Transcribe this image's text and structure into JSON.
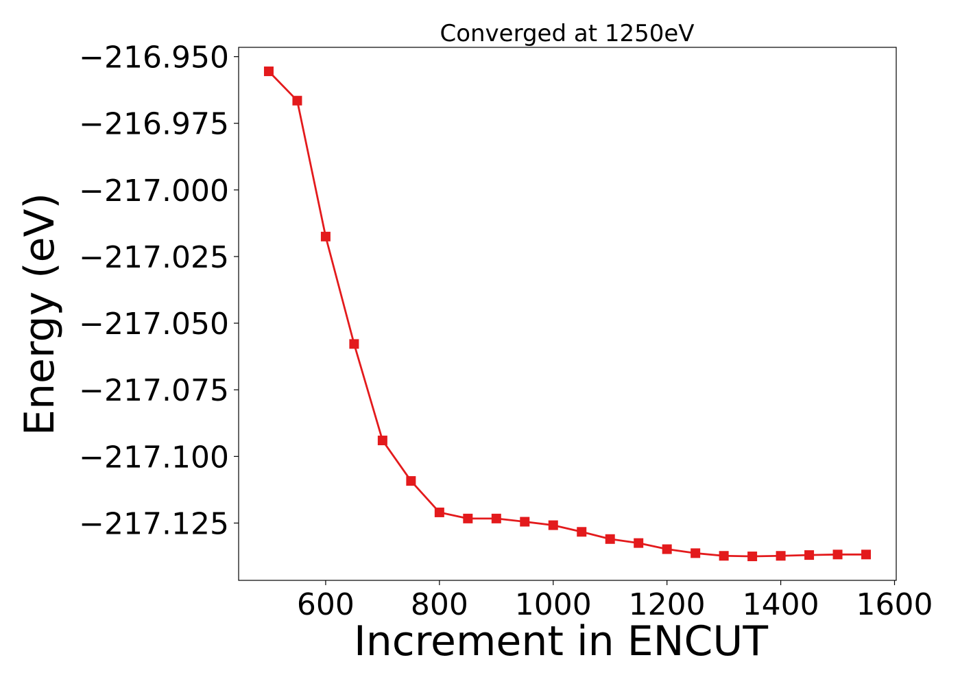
{
  "chart_data": {
    "type": "line",
    "title": "Converged at 1250eV",
    "xlabel": "Increment in ENCUT",
    "ylabel": "Energy (eV)",
    "xlim": [
      447,
      1603
    ],
    "ylim": [
      -217.1465,
      -216.9465
    ],
    "xticks": [
      600,
      800,
      1000,
      1200,
      1400,
      1600
    ],
    "xtick_labels": [
      "600",
      "800",
      "1000",
      "1200",
      "1400",
      "1600"
    ],
    "yticks": [
      -216.95,
      -216.975,
      -217.0,
      -217.025,
      -217.05,
      -217.075,
      -217.1,
      -217.125
    ],
    "ytick_labels": [
      "−216.950",
      "−216.975",
      "−217.000",
      "−217.025",
      "−217.050",
      "−217.075",
      "−217.100",
      "−217.125"
    ],
    "grid": false,
    "series": [
      {
        "color": "#e31a1c",
        "marker": "square",
        "x": [
          500,
          550,
          600,
          650,
          700,
          750,
          800,
          850,
          900,
          950,
          1000,
          1050,
          1100,
          1150,
          1200,
          1250,
          1300,
          1350,
          1400,
          1450,
          1500,
          1550
        ],
        "y": [
          -216.9555,
          -216.9665,
          -217.0175,
          -217.0578,
          -217.094,
          -217.1092,
          -217.121,
          -217.1233,
          -217.1233,
          -217.1245,
          -217.1258,
          -217.1283,
          -217.131,
          -217.1325,
          -217.1348,
          -217.1363,
          -217.1373,
          -217.1375,
          -217.1373,
          -217.137,
          -217.1368,
          -217.1368
        ]
      }
    ]
  }
}
